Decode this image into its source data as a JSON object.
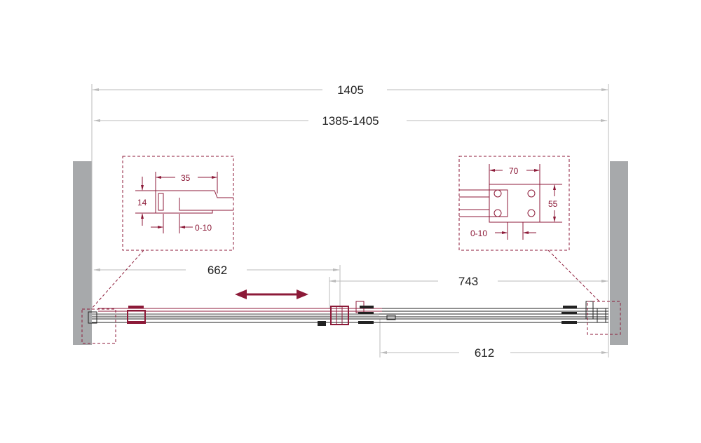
{
  "dimensions": {
    "overall_width": "1405",
    "adjustment_range": "1385-1405",
    "left_panel": "662",
    "right_panel": "743",
    "opening": "612"
  },
  "left_detail": {
    "depth": "35",
    "thickness": "14",
    "adjust": "0-10"
  },
  "right_detail": {
    "width": "70",
    "height": "55",
    "adjust": "0-10"
  },
  "colors": {
    "accent": "#8c1a38",
    "wall": "#a7a9ab",
    "dimension_line": "#bbbbbb",
    "text": "#222222"
  }
}
